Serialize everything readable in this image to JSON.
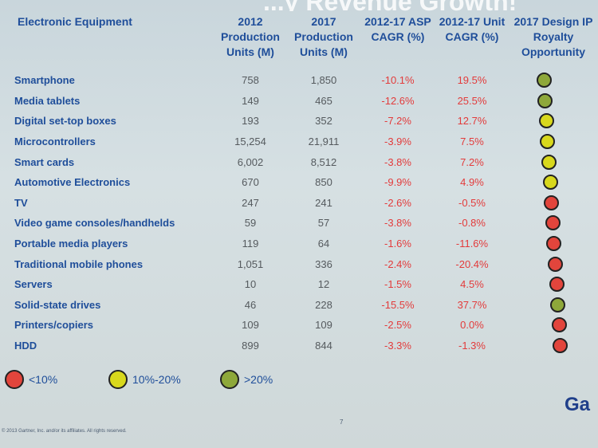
{
  "slide_title": "...y Revenue Growth!",
  "colors": {
    "red": "#e2453c",
    "yellow": "#d8d81c",
    "green": "#8ea83a"
  },
  "table": {
    "headers": {
      "label": "Electronic Equipment",
      "prod_2012": "2012 Production Units (M)",
      "prod_2017": "2017 Production Units (M)",
      "asp_cagr": "2012-17 ASP CAGR (%)",
      "unit_cagr": "2012-17 Unit CAGR (%)",
      "royalty": "2017 Design IP Royalty Opportunity"
    },
    "rows": [
      {
        "label": "Smartphone",
        "prod_2012": "758",
        "prod_2017": "1,850",
        "asp_cagr": "-10.1%",
        "unit_cagr": "19.5%",
        "royalty": "green"
      },
      {
        "label": "Media tablets",
        "prod_2012": "149",
        "prod_2017": "465",
        "asp_cagr": "-12.6%",
        "unit_cagr": "25.5%",
        "royalty": "green"
      },
      {
        "label": "Digital set-top boxes",
        "prod_2012": "193",
        "prod_2017": "352",
        "asp_cagr": "-7.2%",
        "unit_cagr": "12.7%",
        "royalty": "yellow"
      },
      {
        "label": "Microcontrollers",
        "prod_2012": "15,254",
        "prod_2017": "21,911",
        "asp_cagr": "-3.9%",
        "unit_cagr": "7.5%",
        "royalty": "yellow"
      },
      {
        "label": "Smart cards",
        "prod_2012": "6,002",
        "prod_2017": "8,512",
        "asp_cagr": "-3.8%",
        "unit_cagr": "7.2%",
        "royalty": "yellow"
      },
      {
        "label": "Automotive Electronics",
        "prod_2012": "670",
        "prod_2017": "850",
        "asp_cagr": "-9.9%",
        "unit_cagr": "4.9%",
        "royalty": "yellow"
      },
      {
        "label": "TV",
        "prod_2012": "247",
        "prod_2017": "241",
        "asp_cagr": "-2.6%",
        "unit_cagr": "-0.5%",
        "royalty": "red"
      },
      {
        "label": "Video game consoles/handhelds",
        "prod_2012": "59",
        "prod_2017": "57",
        "asp_cagr": "-3.8%",
        "unit_cagr": "-0.8%",
        "royalty": "red"
      },
      {
        "label": "Portable media players",
        "prod_2012": "119",
        "prod_2017": "64",
        "asp_cagr": "-1.6%",
        "unit_cagr": "-11.6%",
        "royalty": "red"
      },
      {
        "label": "Traditional mobile phones",
        "prod_2012": "1,051",
        "prod_2017": "336",
        "asp_cagr": "-2.4%",
        "unit_cagr": "-20.4%",
        "royalty": "red"
      },
      {
        "label": "Servers",
        "prod_2012": "10",
        "prod_2017": "12",
        "asp_cagr": "-1.5%",
        "unit_cagr": "4.5%",
        "royalty": "red"
      },
      {
        "label": "Solid-state drives",
        "prod_2012": "46",
        "prod_2017": "228",
        "asp_cagr": "-15.5%",
        "unit_cagr": "37.7%",
        "royalty": "green"
      },
      {
        "label": "Printers/copiers",
        "prod_2012": "109",
        "prod_2017": "109",
        "asp_cagr": "-2.5%",
        "unit_cagr": "0.0%",
        "royalty": "red"
      },
      {
        "label": "HDD",
        "prod_2012": "899",
        "prod_2017": "844",
        "asp_cagr": "-3.3%",
        "unit_cagr": "-1.3%",
        "royalty": "red"
      }
    ]
  },
  "legend": [
    {
      "label": "<10%",
      "color": "red"
    },
    {
      "label": "10%-20%",
      "color": "yellow"
    },
    {
      "label": ">20%",
      "color": "green"
    }
  ],
  "footer": {
    "copyright": "© 2013 Gartner, Inc. and/or its affiliates. All rights reserved.",
    "page": "7",
    "brand": "Ga"
  }
}
